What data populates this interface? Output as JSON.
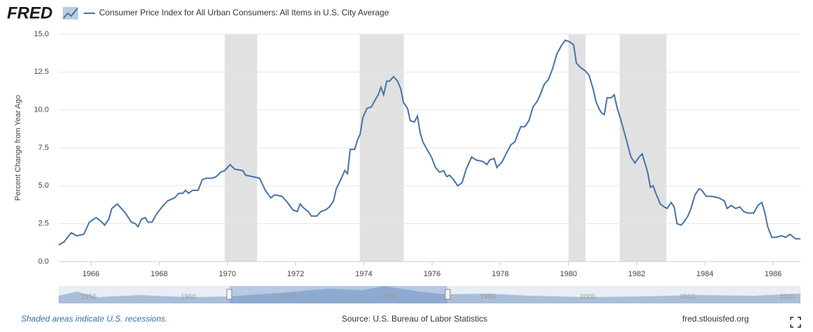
{
  "brand": "FRED",
  "chart_data": {
    "type": "line",
    "ylabel": "Percent Change from Year Ago",
    "x": [
      1965.05,
      1965.21,
      1965.42,
      1965.58,
      1965.79,
      1965.95,
      1966.15,
      1966.32,
      1966.4,
      1966.52,
      1966.61,
      1966.77,
      1966.89,
      1967.01,
      1967.18,
      1967.3,
      1967.38,
      1967.48,
      1967.59,
      1967.67,
      1967.79,
      1967.91,
      1968.08,
      1968.24,
      1968.45,
      1968.57,
      1968.69,
      1968.77,
      1968.86,
      1968.98,
      1969.14,
      1969.26,
      1969.39,
      1969.55,
      1969.67,
      1969.8,
      1969.92,
      1970.08,
      1970.21,
      1970.45,
      1970.53,
      1970.74,
      1970.94,
      1971.11,
      1971.27,
      1971.39,
      1971.6,
      1971.76,
      1971.92,
      1972.05,
      1972.13,
      1972.25,
      1972.37,
      1972.46,
      1972.62,
      1972.74,
      1972.87,
      1972.99,
      1973.11,
      1973.19,
      1973.32,
      1973.44,
      1973.52,
      1973.6,
      1973.73,
      1973.81,
      1973.89,
      1973.97,
      1974.09,
      1974.22,
      1974.34,
      1974.42,
      1974.5,
      1974.58,
      1974.67,
      1974.75,
      1974.87,
      1974.99,
      1975.08,
      1975.16,
      1975.28,
      1975.36,
      1975.48,
      1975.57,
      1975.65,
      1975.73,
      1975.85,
      1975.98,
      1976.1,
      1976.22,
      1976.34,
      1976.43,
      1976.51,
      1976.63,
      1976.75,
      1976.88,
      1977.0,
      1977.16,
      1977.29,
      1977.49,
      1977.61,
      1977.69,
      1977.82,
      1977.9,
      1978.06,
      1978.19,
      1978.31,
      1978.43,
      1978.51,
      1978.6,
      1978.72,
      1978.84,
      1978.96,
      1979.09,
      1979.17,
      1979.29,
      1979.41,
      1979.53,
      1979.66,
      1979.78,
      1979.9,
      1980.03,
      1980.15,
      1980.23,
      1980.35,
      1980.48,
      1980.6,
      1980.72,
      1980.8,
      1980.89,
      1980.97,
      1981.05,
      1981.13,
      1981.25,
      1981.34,
      1981.42,
      1981.54,
      1981.7,
      1981.83,
      1981.95,
      1982.07,
      1982.16,
      1982.24,
      1982.32,
      1982.4,
      1982.48,
      1982.56,
      1982.69,
      1982.81,
      1982.89,
      1983.01,
      1983.1,
      1983.18,
      1983.3,
      1983.38,
      1983.5,
      1983.59,
      1983.71,
      1983.83,
      1983.91,
      1984.04,
      1984.2,
      1984.41,
      1984.57,
      1984.65,
      1984.77,
      1984.9,
      1985.02,
      1985.14,
      1985.26,
      1985.43,
      1985.55,
      1985.67,
      1985.76,
      1985.84,
      1985.96,
      1986.08,
      1986.25,
      1986.37,
      1986.49,
      1986.66,
      1986.8
    ],
    "series": [
      {
        "name": "Consumer Price Index for All Urban Consumers: All Items in U.S. City Average",
        "color": "#4572a7",
        "values": [
          1.1,
          1.3,
          1.9,
          1.7,
          1.8,
          2.6,
          2.9,
          2.6,
          2.4,
          2.8,
          3.5,
          3.8,
          3.5,
          3.2,
          2.6,
          2.5,
          2.3,
          2.8,
          2.9,
          2.6,
          2.6,
          3.1,
          3.6,
          4.0,
          4.2,
          4.5,
          4.5,
          4.7,
          4.5,
          4.7,
          4.7,
          5.4,
          5.5,
          5.5,
          5.6,
          5.9,
          6.0,
          6.4,
          6.1,
          6.0,
          5.7,
          5.6,
          5.5,
          4.7,
          4.2,
          4.4,
          4.3,
          3.9,
          3.4,
          3.3,
          3.8,
          3.5,
          3.3,
          3.0,
          3.0,
          3.3,
          3.4,
          3.6,
          4.0,
          4.8,
          5.4,
          6.0,
          5.8,
          7.4,
          7.4,
          8.0,
          8.4,
          9.5,
          10.1,
          10.2,
          10.7,
          11.0,
          11.5,
          11.0,
          11.9,
          11.9,
          12.2,
          11.9,
          11.4,
          10.5,
          10.1,
          9.3,
          9.2,
          9.6,
          8.5,
          7.9,
          7.4,
          6.9,
          6.2,
          5.9,
          6.0,
          5.6,
          5.7,
          5.4,
          5.0,
          5.2,
          6.1,
          6.9,
          6.7,
          6.6,
          6.4,
          6.7,
          6.8,
          6.2,
          6.6,
          7.2,
          7.7,
          7.9,
          8.4,
          8.9,
          8.9,
          9.3,
          10.2,
          10.6,
          11.0,
          11.7,
          12.0,
          12.7,
          13.7,
          14.2,
          14.6,
          14.5,
          14.3,
          13.1,
          12.8,
          12.6,
          12.3,
          11.4,
          10.6,
          10.1,
          9.8,
          9.7,
          10.8,
          10.8,
          11.0,
          10.2,
          9.3,
          8.0,
          6.9,
          6.5,
          6.9,
          7.1,
          6.5,
          5.9,
          4.9,
          5.0,
          4.5,
          3.8,
          3.6,
          3.5,
          3.9,
          3.6,
          2.5,
          2.4,
          2.6,
          3.0,
          3.5,
          4.4,
          4.8,
          4.7,
          4.3,
          4.3,
          4.2,
          4.0,
          3.5,
          3.7,
          3.5,
          3.6,
          3.3,
          3.2,
          3.2,
          3.7,
          3.9,
          3.2,
          2.3,
          1.6,
          1.6,
          1.7,
          1.6,
          1.8,
          1.5,
          1.5
        ]
      }
    ],
    "recessions": [
      [
        1969.92,
        1970.87
      ],
      [
        1973.88,
        1975.17
      ],
      [
        1980.0,
        1980.5
      ],
      [
        1981.5,
        1982.87
      ]
    ],
    "xlim": [
      1965.05,
      1986.8
    ],
    "xticks": [
      1966,
      1968,
      1970,
      1972,
      1974,
      1976,
      1978,
      1980,
      1982,
      1984,
      1986
    ],
    "ylim": [
      0,
      15
    ],
    "yticks": [
      {
        "value": 0,
        "label": "0.0"
      },
      2.5,
      {
        "value": 5,
        "label": "5.0"
      },
      7.5,
      {
        "value": 10,
        "label": "10.0"
      },
      12.5,
      {
        "value": 15,
        "label": "15.0"
      }
    ],
    "grid": true,
    "recession_color": "#e1e1e1"
  },
  "navigator_labels": [
    "1950",
    "1960",
    "1970",
    "1980",
    "1990",
    "2000",
    "2010",
    "2020"
  ],
  "footer": {
    "note": "Shaded areas indicate U.S. recessions.",
    "source": "Source: U.S. Bureau of Labor Statistics",
    "site": "fred.stlouisfed.org"
  }
}
